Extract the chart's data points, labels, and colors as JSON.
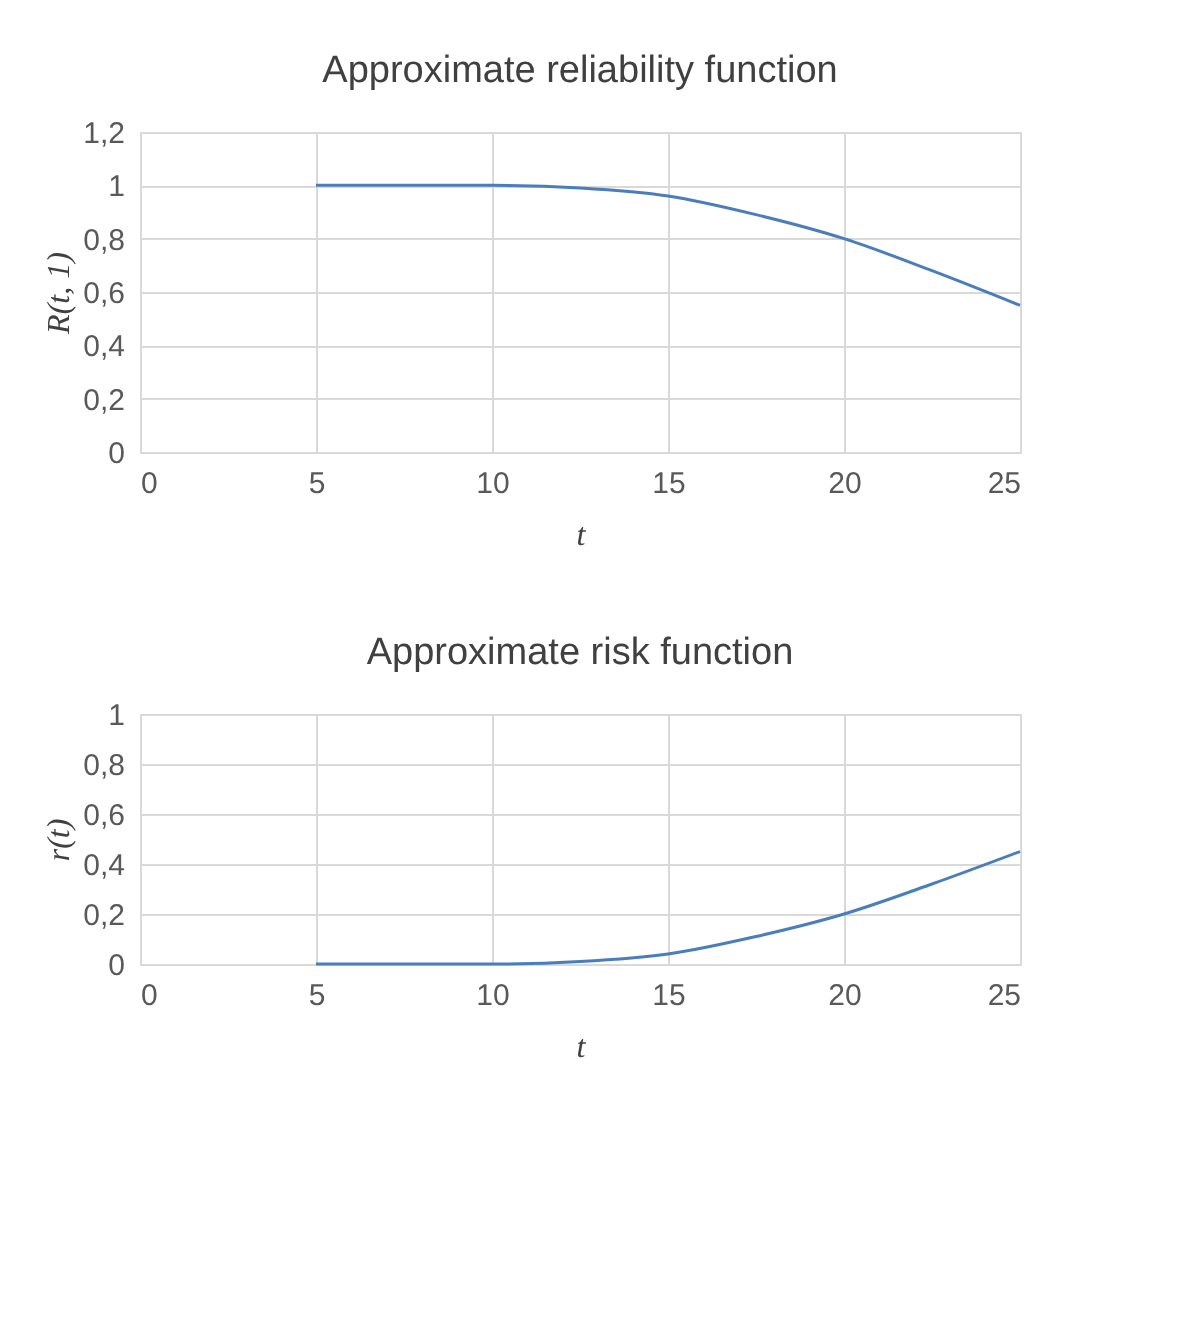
{
  "chart_data": [
    {
      "type": "line",
      "title": "Approximate reliability function",
      "xlabel": "t",
      "ylabel": "R(t, 1)",
      "x": [
        5,
        7.5,
        10,
        12.5,
        15,
        17.5,
        20,
        22.5,
        25
      ],
      "series": [
        {
          "color": "#4a7ebb",
          "values": [
            1,
            1,
            1,
            0.99,
            0.96,
            0.89,
            0.8,
            0.68,
            0.55
          ]
        }
      ],
      "xlim": [
        0,
        25
      ],
      "xticks": [
        0,
        5,
        10,
        15,
        20,
        25
      ],
      "ylim": [
        0,
        1.2
      ],
      "yticks": [
        0,
        {
          "value": 0.2,
          "label": "0,2"
        },
        {
          "value": 0.4,
          "label": "0,4"
        },
        {
          "value": 0.6,
          "label": "0,6"
        },
        {
          "value": 0.8,
          "label": "0,8"
        },
        1,
        {
          "value": 1.2,
          "label": "1,2"
        }
      ],
      "grid": true,
      "marker": "none",
      "line_style": "solid"
    },
    {
      "type": "line",
      "title": "Approximate risk function",
      "xlabel": "t",
      "ylabel": "r(t)",
      "x": [
        5,
        7.5,
        10,
        12.5,
        15,
        17.5,
        20,
        22.5,
        25
      ],
      "series": [
        {
          "color": "#4a7ebb",
          "values": [
            0,
            0,
            0,
            0.01,
            0.04,
            0.11,
            0.2,
            0.32,
            0.45
          ]
        }
      ],
      "xlim": [
        0,
        25
      ],
      "xticks": [
        0,
        5,
        10,
        15,
        20,
        25
      ],
      "ylim": [
        0,
        1
      ],
      "yticks": [
        0,
        {
          "value": 0.2,
          "label": "0,2"
        },
        {
          "value": 0.4,
          "label": "0,4"
        },
        {
          "value": 0.6,
          "label": "0,6"
        },
        {
          "value": 0.8,
          "label": "0,8"
        },
        1
      ],
      "grid": true,
      "marker": "none",
      "line_style": "solid"
    }
  ]
}
